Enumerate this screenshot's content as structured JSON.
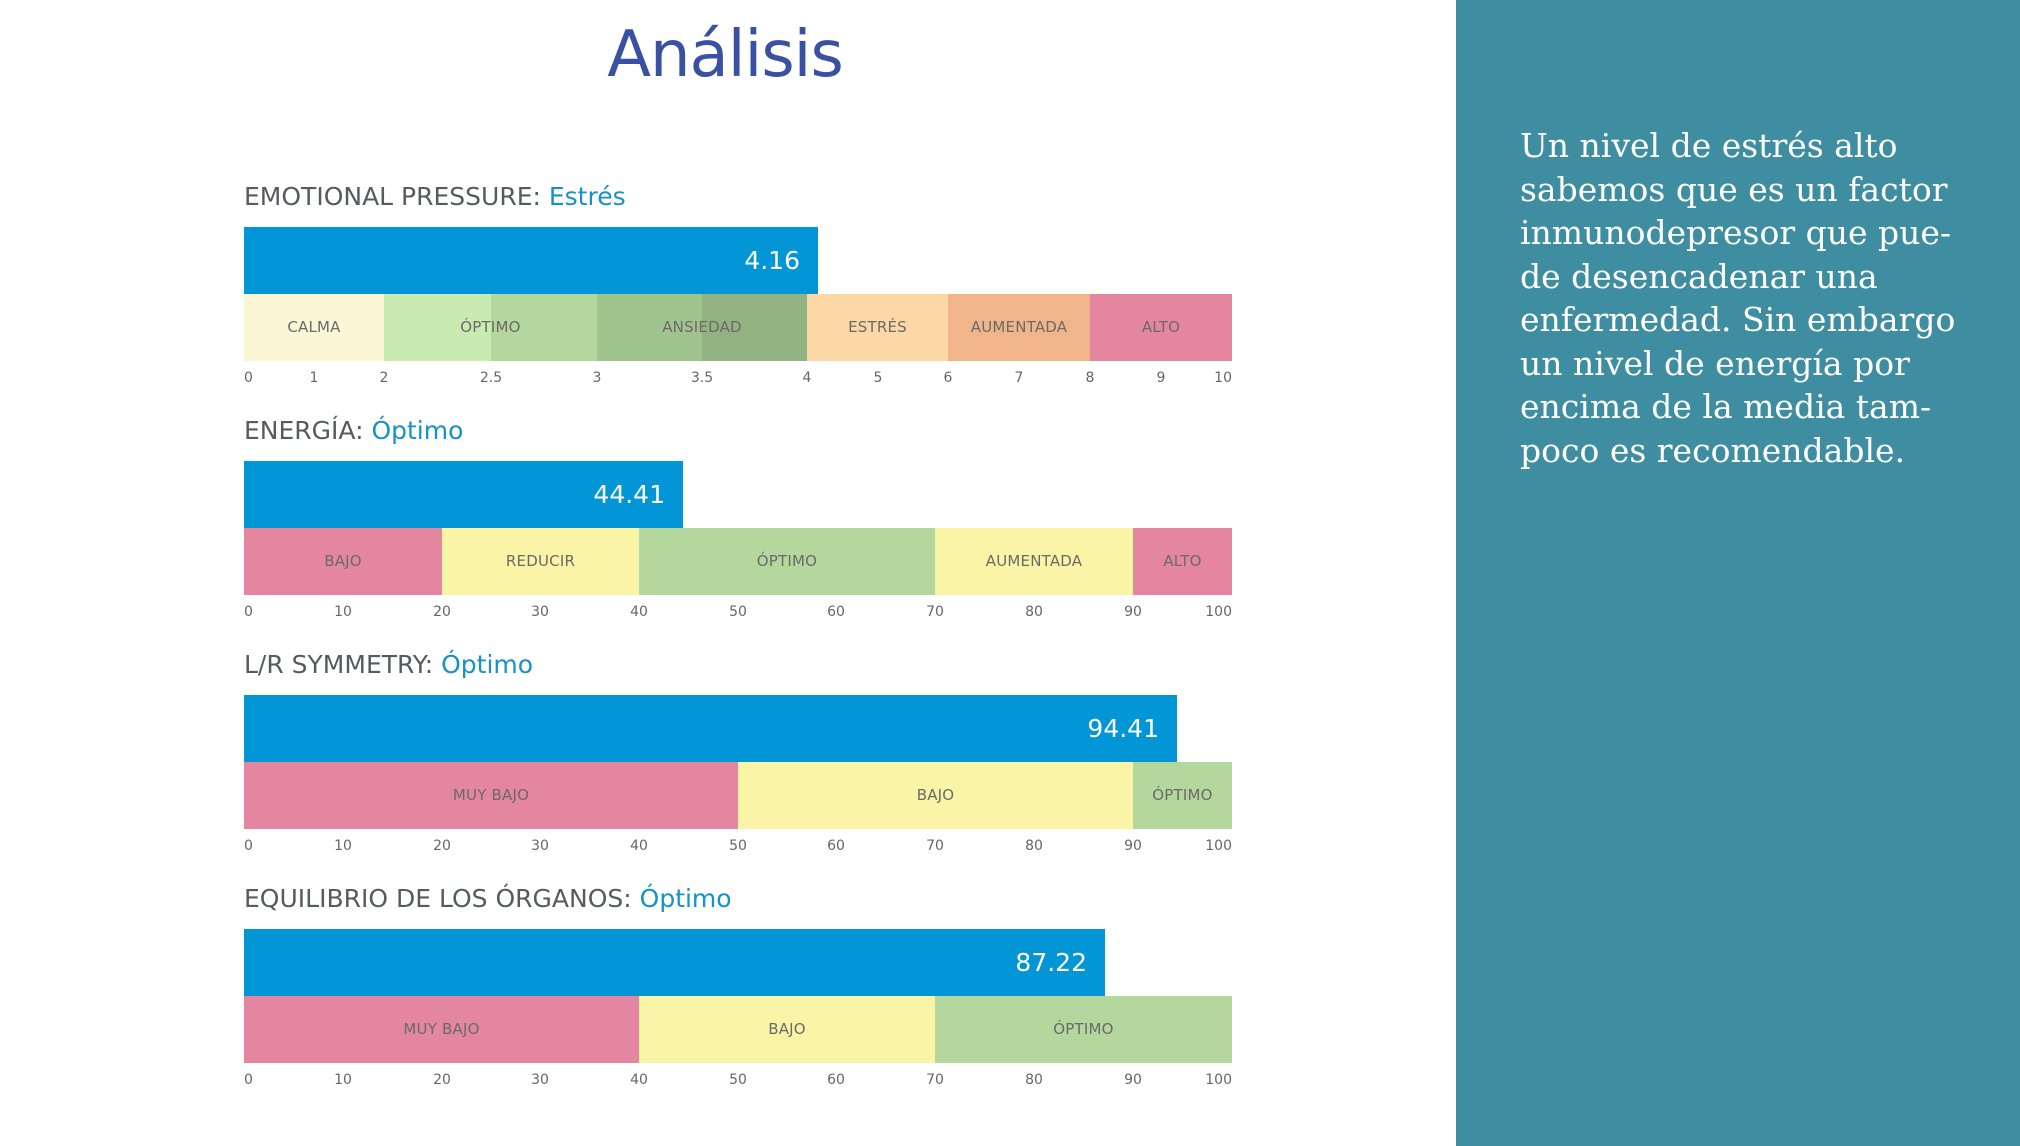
{
  "title": "Análisis",
  "metrics": [
    {
      "label": "EMOTIONAL PRESSURE:",
      "status": "Estrés",
      "value": 4.16,
      "value_label": "4.16",
      "scale": {
        "ticks": [
          {
            "v": 0,
            "t": "0"
          },
          {
            "v": 1,
            "t": "1"
          },
          {
            "v": 2,
            "t": "2"
          },
          {
            "v": 2.5,
            "t": "2.5"
          },
          {
            "v": 3,
            "t": "3"
          },
          {
            "v": 3.5,
            "t": "3.5"
          },
          {
            "v": 4,
            "t": "4"
          },
          {
            "v": 5,
            "t": "5"
          },
          {
            "v": 6,
            "t": "6"
          },
          {
            "v": 7,
            "t": "7"
          },
          {
            "v": 8,
            "t": "8"
          },
          {
            "v": 9,
            "t": "9"
          },
          {
            "v": 10,
            "t": "10"
          }
        ]
      },
      "zones": [
        {
          "from": 0,
          "to": 2,
          "label": "CALMA",
          "color": "#fbf7d5"
        },
        {
          "from": 2,
          "to": 2.5,
          "label": "",
          "color": "#c9eab0"
        },
        {
          "from": 2.5,
          "to": 3,
          "label": "",
          "color": "#b4d79e"
        },
        {
          "from": 3,
          "to": 3.5,
          "label": "",
          "color": "#a0c48e"
        },
        {
          "from": 3.5,
          "to": 4,
          "label": "",
          "color": "#93b282"
        },
        {
          "from": 4,
          "to": 6,
          "label": "ESTRÉS",
          "color": "#fbd8a6"
        },
        {
          "from": 6,
          "to": 8,
          "label": "AUMENTADA",
          "color": "#f1b589"
        },
        {
          "from": 8,
          "to": 10,
          "label": "ALTO",
          "color": "#e4869f"
        }
      ],
      "zone_texts": [
        {
          "from": 0,
          "to": 2,
          "label": "CALMA"
        },
        {
          "from": 2,
          "to": 3,
          "label": "ÓPTIMO"
        },
        {
          "from": 3,
          "to": 4,
          "label": "ANSIEDAD"
        },
        {
          "from": 4,
          "to": 6,
          "label": "ESTRÉS"
        },
        {
          "from": 6,
          "to": 8,
          "label": "AUMENTADA"
        },
        {
          "from": 8,
          "to": 10,
          "label": "ALTO"
        }
      ]
    },
    {
      "label": "ENERGÍA:",
      "status": "Óptimo",
      "value": 44.41,
      "value_label": "44.41",
      "scale": {
        "ticks": [
          {
            "v": 0,
            "t": "0"
          },
          {
            "v": 10,
            "t": "10"
          },
          {
            "v": 20,
            "t": "20"
          },
          {
            "v": 30,
            "t": "30"
          },
          {
            "v": 40,
            "t": "40"
          },
          {
            "v": 50,
            "t": "50"
          },
          {
            "v": 60,
            "t": "60"
          },
          {
            "v": 70,
            "t": "70"
          },
          {
            "v": 80,
            "t": "80"
          },
          {
            "v": 90,
            "t": "90"
          },
          {
            "v": 100,
            "t": "100"
          }
        ]
      },
      "zones": [
        {
          "from": 0,
          "to": 20,
          "label": "BAJO",
          "color": "#e4869f"
        },
        {
          "from": 20,
          "to": 40,
          "label": "REDUCIR",
          "color": "#faf4a6"
        },
        {
          "from": 40,
          "to": 70,
          "label": "ÓPTIMO",
          "color": "#b4d79e"
        },
        {
          "from": 70,
          "to": 90,
          "label": "AUMENTADA",
          "color": "#faf4a6"
        },
        {
          "from": 90,
          "to": 100,
          "label": "ALTO",
          "color": "#e4869f"
        }
      ]
    },
    {
      "label": "L/R SYMMETRY:",
      "status": "Óptimo",
      "value": 94.41,
      "value_label": "94.41",
      "scale": {
        "ticks": [
          {
            "v": 0,
            "t": "0"
          },
          {
            "v": 10,
            "t": "10"
          },
          {
            "v": 20,
            "t": "20"
          },
          {
            "v": 30,
            "t": "30"
          },
          {
            "v": 40,
            "t": "40"
          },
          {
            "v": 50,
            "t": "50"
          },
          {
            "v": 60,
            "t": "60"
          },
          {
            "v": 70,
            "t": "70"
          },
          {
            "v": 80,
            "t": "80"
          },
          {
            "v": 90,
            "t": "90"
          },
          {
            "v": 100,
            "t": "100"
          }
        ]
      },
      "zones": [
        {
          "from": 0,
          "to": 50,
          "label": "MUY BAJO",
          "color": "#e4869f"
        },
        {
          "from": 50,
          "to": 90,
          "label": "BAJO",
          "color": "#faf4a6"
        },
        {
          "from": 90,
          "to": 100,
          "label": "ÓPTIMO",
          "color": "#b4d79e"
        }
      ]
    },
    {
      "label": "EQUILIBRIO DE LOS ÓRGANOS:",
      "status": "Óptimo",
      "value": 87.22,
      "value_label": "87.22",
      "scale": {
        "ticks": [
          {
            "v": 0,
            "t": "0"
          },
          {
            "v": 10,
            "t": "10"
          },
          {
            "v": 20,
            "t": "20"
          },
          {
            "v": 30,
            "t": "30"
          },
          {
            "v": 40,
            "t": "40"
          },
          {
            "v": 50,
            "t": "50"
          },
          {
            "v": 60,
            "t": "60"
          },
          {
            "v": 70,
            "t": "70"
          },
          {
            "v": 80,
            "t": "80"
          },
          {
            "v": 90,
            "t": "90"
          },
          {
            "v": 100,
            "t": "100"
          }
        ]
      },
      "zones": [
        {
          "from": 0,
          "to": 40,
          "label": "MUY BAJO",
          "color": "#e4869f"
        },
        {
          "from": 40,
          "to": 70,
          "label": "BAJO",
          "color": "#faf4a6"
        },
        {
          "from": 70,
          "to": 100,
          "label": "ÓPTIMO",
          "color": "#b4d79e"
        }
      ]
    }
  ],
  "note_lines": [
    "Un nivel de estrés alto",
    "sabemos que es un factor",
    "inmunodepresor que pue-",
    "de desencadenar una",
    "enfermedad. Sin embargo",
    "un nivel de energía por",
    "encima de la media tam-",
    "poco es recomendable."
  ],
  "colors": {
    "value_bar": "#0396d6",
    "title": "#3a51a3",
    "status": "#1592c9",
    "side_panel": "#3f8da0"
  },
  "chart_data": [
    {
      "type": "bar",
      "title": "EMOTIONAL PRESSURE: Estrés",
      "values": [
        4.16
      ],
      "xlim": [
        0,
        10
      ]
    },
    {
      "type": "bar",
      "title": "ENERGÍA: Óptimo",
      "values": [
        44.41
      ],
      "xlim": [
        0,
        100
      ]
    },
    {
      "type": "bar",
      "title": "L/R SYMMETRY: Óptimo",
      "values": [
        94.41
      ],
      "xlim": [
        0,
        100
      ]
    },
    {
      "type": "bar",
      "title": "EQUILIBRIO DE LOS ÓRGANOS: Óptimo",
      "values": [
        87.22
      ],
      "xlim": [
        0,
        100
      ]
    }
  ]
}
